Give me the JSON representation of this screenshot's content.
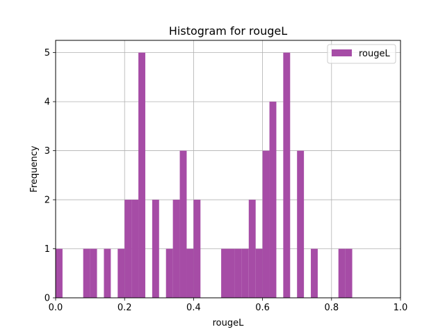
{
  "chart_data": {
    "type": "bar",
    "title": "Histogram for rougeL",
    "xlabel": "rougeL",
    "ylabel": "Frequency",
    "xlim": [
      0,
      1
    ],
    "ylim": [
      0,
      5.25
    ],
    "xticks": [
      "0.0",
      "0.2",
      "0.4",
      "0.6",
      "0.8",
      "1.0"
    ],
    "xtick_values": [
      0,
      0.2,
      0.4,
      0.6,
      0.8,
      1.0
    ],
    "yticks": [
      "0",
      "1",
      "2",
      "3",
      "4",
      "5"
    ],
    "ytick_values": [
      0,
      1,
      2,
      3,
      4,
      5
    ],
    "grid": true,
    "legend_position": "top-right",
    "bar_color": "#a64ca6",
    "series": [
      {
        "name": "rougeL",
        "bin_width": 0.02,
        "bins": [
          {
            "x": 0.0,
            "count": 1
          },
          {
            "x": 0.08,
            "count": 1
          },
          {
            "x": 0.1,
            "count": 1
          },
          {
            "x": 0.14,
            "count": 1
          },
          {
            "x": 0.18,
            "count": 1
          },
          {
            "x": 0.2,
            "count": 2
          },
          {
            "x": 0.22,
            "count": 2
          },
          {
            "x": 0.24,
            "count": 5
          },
          {
            "x": 0.28,
            "count": 2
          },
          {
            "x": 0.32,
            "count": 1
          },
          {
            "x": 0.34,
            "count": 2
          },
          {
            "x": 0.36,
            "count": 3
          },
          {
            "x": 0.38,
            "count": 1
          },
          {
            "x": 0.4,
            "count": 2
          },
          {
            "x": 0.48,
            "count": 1
          },
          {
            "x": 0.5,
            "count": 1
          },
          {
            "x": 0.52,
            "count": 1
          },
          {
            "x": 0.54,
            "count": 1
          },
          {
            "x": 0.56,
            "count": 2
          },
          {
            "x": 0.58,
            "count": 1
          },
          {
            "x": 0.6,
            "count": 3
          },
          {
            "x": 0.62,
            "count": 4
          },
          {
            "x": 0.66,
            "count": 5
          },
          {
            "x": 0.7,
            "count": 3
          },
          {
            "x": 0.74,
            "count": 1
          },
          {
            "x": 0.82,
            "count": 1
          },
          {
            "x": 0.84,
            "count": 1
          }
        ]
      }
    ]
  }
}
